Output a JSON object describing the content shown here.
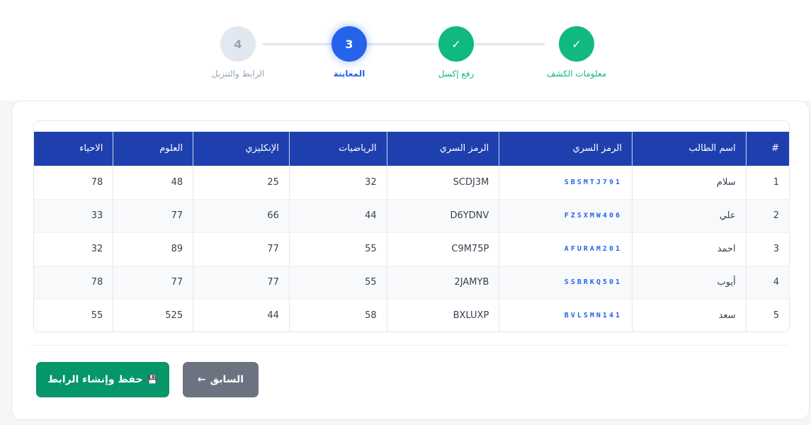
{
  "stepper": {
    "steps": [
      {
        "label": "معلومات الكشف",
        "mark": "✓",
        "state": "done"
      },
      {
        "label": "رفع إكسل",
        "mark": "✓",
        "state": "done"
      },
      {
        "label": "المعاينة",
        "mark": "3",
        "state": "current"
      },
      {
        "label": "الرابط والتنزيل",
        "mark": "4",
        "state": "pending"
      }
    ]
  },
  "table": {
    "headers": [
      "#",
      "اسم الطالب",
      "الرمز السري",
      "الرمز السري",
      "الرياضيات",
      "الإنكليزي",
      "العلوم",
      "الاحياء"
    ],
    "rows": [
      [
        "1",
        "سلام",
        "SBSMTJ791",
        "SCDJ3M",
        "32",
        "25",
        "48",
        "78"
      ],
      [
        "2",
        "علي",
        "FZSXMW406",
        "D6YDNV",
        "44",
        "66",
        "77",
        "33"
      ],
      [
        "3",
        "احمد",
        "AFURAM201",
        "C9M75P",
        "55",
        "77",
        "89",
        "32"
      ],
      [
        "4",
        "أيوب",
        "SSBRKQ501",
        "2JAMYB",
        "55",
        "77",
        "77",
        "78"
      ],
      [
        "5",
        "سعد",
        "BVLSMN141",
        "BXLUXP",
        "58",
        "44",
        "525",
        "55"
      ]
    ]
  },
  "actions": {
    "save_label": "حفظ وإنشاء الرابط",
    "save_icon": "💾",
    "prev_label": "السابق",
    "prev_icon": "←"
  },
  "colors": {
    "done": "#10b981",
    "current": "#2563eb",
    "header": "#1e40af",
    "save": "#059669",
    "prev": "#6b7280"
  }
}
